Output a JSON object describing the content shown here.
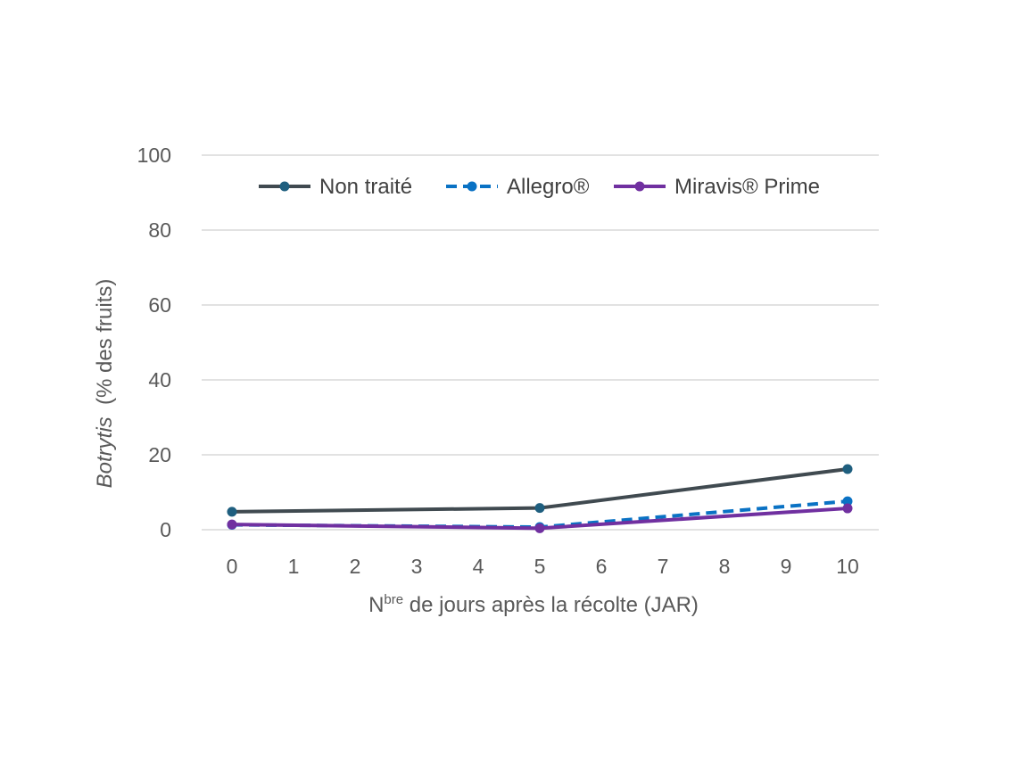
{
  "chart_data": {
    "type": "line",
    "x": [
      0,
      5,
      10
    ],
    "xticks": [
      0,
      1,
      2,
      3,
      4,
      5,
      6,
      7,
      8,
      9,
      10
    ],
    "xlim": [
      0,
      10
    ],
    "yticks": [
      0,
      20,
      40,
      60,
      80,
      100
    ],
    "ylim": [
      0,
      100
    ],
    "grid": true,
    "legend_position": "top",
    "xlabel_main": "N",
    "xlabel_sup": "bre",
    "xlabel_rest": " de jours après la récolte (JAR)",
    "ylabel_italic": "Botrytis",
    "ylabel_rest": "  (% des fruits)",
    "series": [
      {
        "name": "Non traité",
        "values": [
          4.8,
          5.8,
          16.2
        ],
        "color": "#404a50",
        "marker_color": "#1f5f7f",
        "dash": false
      },
      {
        "name": "Allegro®",
        "values": [
          1.3,
          0.7,
          7.6
        ],
        "color": "#0a72c4",
        "marker_color": "#0a72c4",
        "dash": true
      },
      {
        "name": "Miravis® Prime",
        "values": [
          1.4,
          0.4,
          5.7
        ],
        "color": "#7030a0",
        "marker_color": "#7030a0",
        "dash": false
      }
    ]
  }
}
